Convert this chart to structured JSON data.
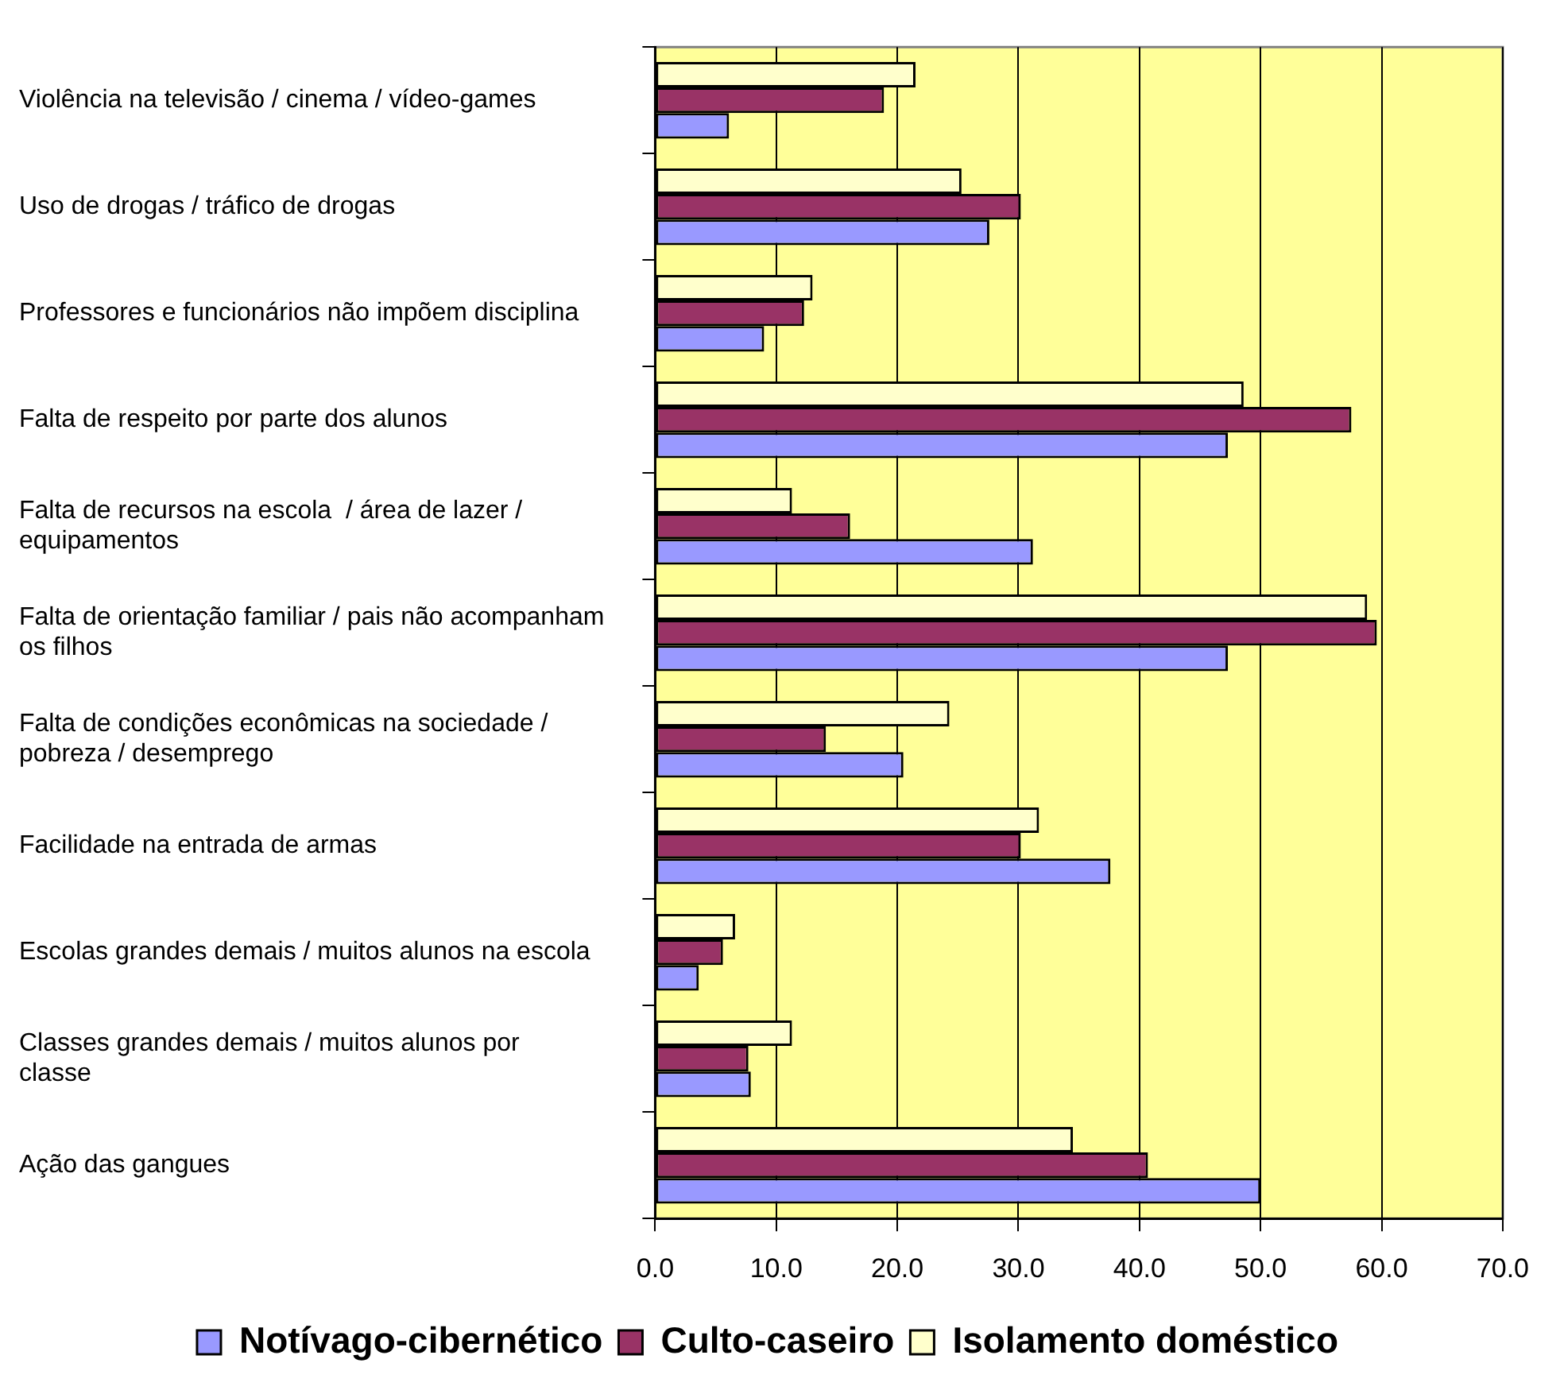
{
  "chart_data": {
    "type": "bar",
    "orientation": "horizontal",
    "categories": [
      "Violência na televisão / cinema / vídeo-games",
      "Uso de drogas / tráfico de drogas",
      "Professores e funcionários não impõem disciplina",
      "Falta de respeito por parte dos alunos",
      "Falta de recursos na escola  / área de lazer /\nequipamentos",
      "Falta de orientação familiar / pais não acompanham\nos filhos",
      "Falta de condições econômicas na sociedade /\npobreza / desemprego",
      "Facilidade na entrada de armas",
      "Escolas grandes demais / muitos alunos na escola",
      "Classes grandes demais / muitos alunos por\nclasse",
      "Ação das gangues"
    ],
    "series": [
      {
        "name": "Notívago-cibernético",
        "color": "#9999ff",
        "values": [
          6.1,
          27.6,
          9.0,
          47.3,
          31.2,
          47.3,
          20.5,
          37.6,
          3.6,
          7.9,
          50.0
        ]
      },
      {
        "name": "Culto-caseiro",
        "color": "#993366",
        "values": [
          18.9,
          30.2,
          12.3,
          57.5,
          16.1,
          59.6,
          14.1,
          30.2,
          5.6,
          7.7,
          40.7
        ]
      },
      {
        "name": "Isolamento doméstico",
        "color": "#ffffcc",
        "values": [
          21.5,
          25.3,
          13.0,
          48.6,
          11.3,
          58.8,
          24.3,
          31.7,
          6.6,
          11.3,
          34.5
        ]
      }
    ],
    "xlim": [
      0,
      70
    ],
    "xticks": [
      {
        "value": 0,
        "label": "0.0"
      },
      {
        "value": 10,
        "label": "10.0"
      },
      {
        "value": 20,
        "label": "20.0"
      },
      {
        "value": 30,
        "label": "30.0"
      },
      {
        "value": 40,
        "label": "40.0"
      },
      {
        "value": 50,
        "label": "50.0"
      },
      {
        "value": 60,
        "label": "60.0"
      },
      {
        "value": 70,
        "label": "70.0"
      }
    ],
    "grid": "x",
    "legend": "bottom"
  }
}
